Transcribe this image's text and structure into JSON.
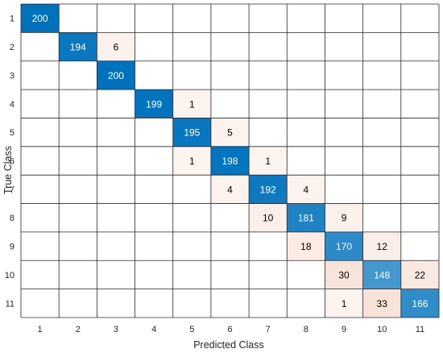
{
  "chart_data": {
    "type": "heatmap",
    "subtype": "confusion-matrix",
    "title": "",
    "xlabel": "Predicted Class",
    "ylabel": "True Class",
    "classes": [
      "1",
      "2",
      "3",
      "4",
      "5",
      "6",
      "7",
      "8",
      "9",
      "10",
      "11"
    ],
    "matrix": [
      [
        200,
        0,
        0,
        0,
        0,
        0,
        0,
        0,
        0,
        0,
        0
      ],
      [
        0,
        194,
        6,
        0,
        0,
        0,
        0,
        0,
        0,
        0,
        0
      ],
      [
        0,
        0,
        200,
        0,
        0,
        0,
        0,
        0,
        0,
        0,
        0
      ],
      [
        0,
        0,
        0,
        199,
        1,
        0,
        0,
        0,
        0,
        0,
        0
      ],
      [
        0,
        0,
        0,
        0,
        195,
        5,
        0,
        0,
        0,
        0,
        0
      ],
      [
        0,
        0,
        0,
        0,
        1,
        198,
        1,
        0,
        0,
        0,
        0
      ],
      [
        0,
        0,
        0,
        0,
        0,
        4,
        192,
        4,
        0,
        0,
        0
      ],
      [
        0,
        0,
        0,
        0,
        0,
        0,
        10,
        181,
        9,
        0,
        0
      ],
      [
        0,
        0,
        0,
        0,
        0,
        0,
        0,
        18,
        170,
        12,
        0
      ],
      [
        0,
        0,
        0,
        0,
        0,
        0,
        0,
        0,
        30,
        148,
        22
      ],
      [
        0,
        0,
        0,
        0,
        0,
        0,
        0,
        0,
        1,
        33,
        166
      ]
    ],
    "zero_cells_blank": true,
    "colors": {
      "diagonal_max": "#0072bd",
      "diagonal_min": "#ffffff",
      "offdiag_max": "#d95319",
      "offdiag_min": "#ffffff",
      "grid": "#262626",
      "text_dark": "#000000",
      "text_light": "#ffffff"
    }
  }
}
